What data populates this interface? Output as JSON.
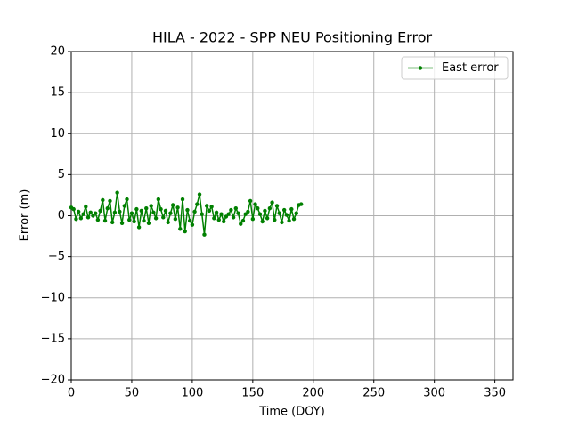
{
  "chart_data": {
    "type": "line",
    "title": "HILA - 2022 - SPP NEU Positioning Error",
    "xlabel": "Time (DOY)",
    "ylabel": "Error (m)",
    "x": [
      0,
      2,
      4,
      6,
      8,
      10,
      12,
      14,
      16,
      18,
      20,
      22,
      24,
      26,
      28,
      30,
      32,
      34,
      36,
      38,
      40,
      42,
      44,
      46,
      48,
      50,
      52,
      54,
      56,
      58,
      60,
      62,
      64,
      66,
      68,
      70,
      72,
      74,
      76,
      78,
      80,
      82,
      84,
      86,
      88,
      90,
      92,
      94,
      96,
      98,
      100,
      102,
      104,
      106,
      108,
      110,
      112,
      114,
      116,
      118,
      120,
      122,
      124,
      126,
      128,
      130,
      132,
      134,
      136,
      138,
      140,
      142,
      144,
      146,
      148,
      150,
      152,
      154,
      156,
      158,
      160,
      162,
      164,
      166,
      168,
      170,
      172,
      174,
      176,
      178,
      180,
      182,
      184,
      186,
      188,
      190
    ],
    "series": [
      {
        "name": "East error",
        "color": "#008000",
        "values": [
          1.0,
          0.8,
          -0.4,
          0.5,
          -0.3,
          0.2,
          1.1,
          -0.2,
          0.4,
          0.0,
          0.3,
          -0.5,
          0.6,
          1.9,
          -0.6,
          0.9,
          1.8,
          -0.8,
          0.4,
          2.8,
          0.5,
          -0.9,
          1.2,
          2.0,
          -0.5,
          0.3,
          -0.7,
          0.8,
          -1.4,
          0.6,
          -0.6,
          0.9,
          -0.9,
          1.2,
          0.4,
          -0.3,
          2.0,
          0.8,
          -0.2,
          0.6,
          -0.8,
          0.3,
          1.3,
          -0.4,
          1.0,
          -1.6,
          2.0,
          -1.9,
          0.7,
          -0.6,
          -1.1,
          0.5,
          1.4,
          2.6,
          0.2,
          -2.3,
          1.2,
          0.6,
          1.1,
          -0.3,
          0.4,
          -0.5,
          0.2,
          -0.7,
          -0.1,
          0.2,
          0.7,
          -0.2,
          0.9,
          0.3,
          -1.0,
          -0.6,
          0.2,
          0.5,
          1.8,
          -0.4,
          1.4,
          0.9,
          0.2,
          -0.7,
          0.6,
          -0.3,
          0.9,
          1.6,
          -0.5,
          1.2,
          0.3,
          -0.8,
          0.7,
          0.1,
          -0.6,
          0.8,
          -0.4,
          0.3,
          1.3,
          1.4
        ]
      }
    ],
    "xlim": [
      0,
      365
    ],
    "xticks": [
      0,
      50,
      100,
      150,
      200,
      250,
      300,
      350
    ],
    "ylim": [
      -20,
      20
    ],
    "yticks": [
      {
        "value": -20,
        "label": "−20"
      },
      {
        "value": -15,
        "label": "−15"
      },
      {
        "value": -10,
        "label": "−10"
      },
      {
        "value": -5,
        "label": "−5"
      },
      0,
      5,
      10,
      15,
      20
    ],
    "grid": true,
    "legend": "upper-right"
  }
}
